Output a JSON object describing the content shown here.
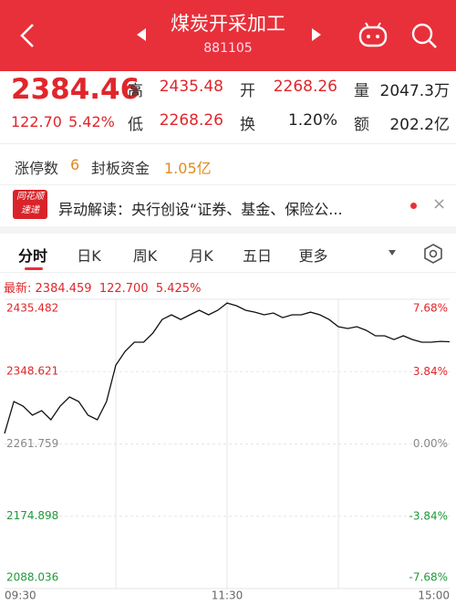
{
  "header": {
    "title": "煤炭开采加工",
    "code": "881105"
  },
  "quote": {
    "price": "2384.46",
    "change": "122.70",
    "change_pct": "5.42%",
    "stats": [
      {
        "label": "高",
        "value": "2435.48"
      },
      {
        "label": "开",
        "value": "2268.26"
      },
      {
        "label": "量",
        "value": "2047.3万"
      },
      {
        "label": "低",
        "value": "2268.26"
      },
      {
        "label": "换",
        "value": "1.20%"
      },
      {
        "label": "额",
        "value": "202.2亿"
      }
    ]
  },
  "limit": {
    "count_label": "涨停数",
    "count": "6",
    "fund_label": "封板资金",
    "fund": "1.05亿"
  },
  "news": {
    "badge_top": "同花顺",
    "badge_bottom": "速递",
    "text": "异动解读：央行创设“证券、基金、保险公..."
  },
  "tabs": [
    "分时",
    "日K",
    "周K",
    "月K",
    "五日",
    "更多"
  ],
  "chart_data": {
    "type": "line",
    "latest": {
      "label": "最新:",
      "price": "2384.459",
      "change": "122.700",
      "pct": "5.425%"
    },
    "x": [
      0,
      5,
      10,
      15,
      20,
      25,
      30,
      35,
      40,
      45,
      50,
      55,
      60,
      65,
      70,
      75,
      80,
      85,
      90,
      95,
      100,
      105,
      110,
      115,
      120,
      125,
      130,
      135,
      140,
      145,
      150,
      155,
      160,
      165,
      170,
      175,
      180,
      185,
      190,
      195,
      200,
      205,
      210,
      215,
      220,
      225,
      230,
      235,
      240
    ],
    "series": [
      {
        "color": "#111111",
        "values": [
          2274.3,
          2312.7,
          2307.2,
          2296.3,
          2301.8,
          2290.8,
          2307.2,
          2318.2,
          2312.7,
          2296.3,
          2290.8,
          2312.7,
          2356.5,
          2373,
          2384,
          2384,
          2395,
          2411.3,
          2416.8,
          2411.3,
          2416.8,
          2422.3,
          2416.8,
          2422.3,
          2431,
          2427.8,
          2422.3,
          2420,
          2416.8,
          2419,
          2413.5,
          2416.8,
          2416.8,
          2420,
          2416.8,
          2411.3,
          2402.6,
          2400.4,
          2402.6,
          2398.2,
          2391.6,
          2391.6,
          2387.2,
          2391.6,
          2387.2,
          2384,
          2384,
          2385,
          2384.5
        ]
      }
    ],
    "xlim": [
      0,
      240
    ],
    "xticks": [
      {
        "value": 0,
        "label": "09:30"
      },
      {
        "value": 120,
        "label": "11:30"
      },
      {
        "value": 240,
        "label": "15:00"
      }
    ],
    "ylim": [
      2088.036,
      2435.482
    ],
    "yticks": [
      2088.036,
      2174.898,
      2261.759,
      2348.621,
      2435.482
    ],
    "y2lim": [
      -7.68,
      7.68
    ],
    "y2ticks": [
      {
        "value": -7.68,
        "label": "-7.68%"
      },
      {
        "value": -3.84,
        "label": "-3.84%"
      },
      {
        "value": 0,
        "label": "0.00%"
      },
      {
        "value": 3.84,
        "label": "3.84%"
      },
      {
        "value": 7.68,
        "label": "7.68%"
      }
    ],
    "grid": true
  }
}
